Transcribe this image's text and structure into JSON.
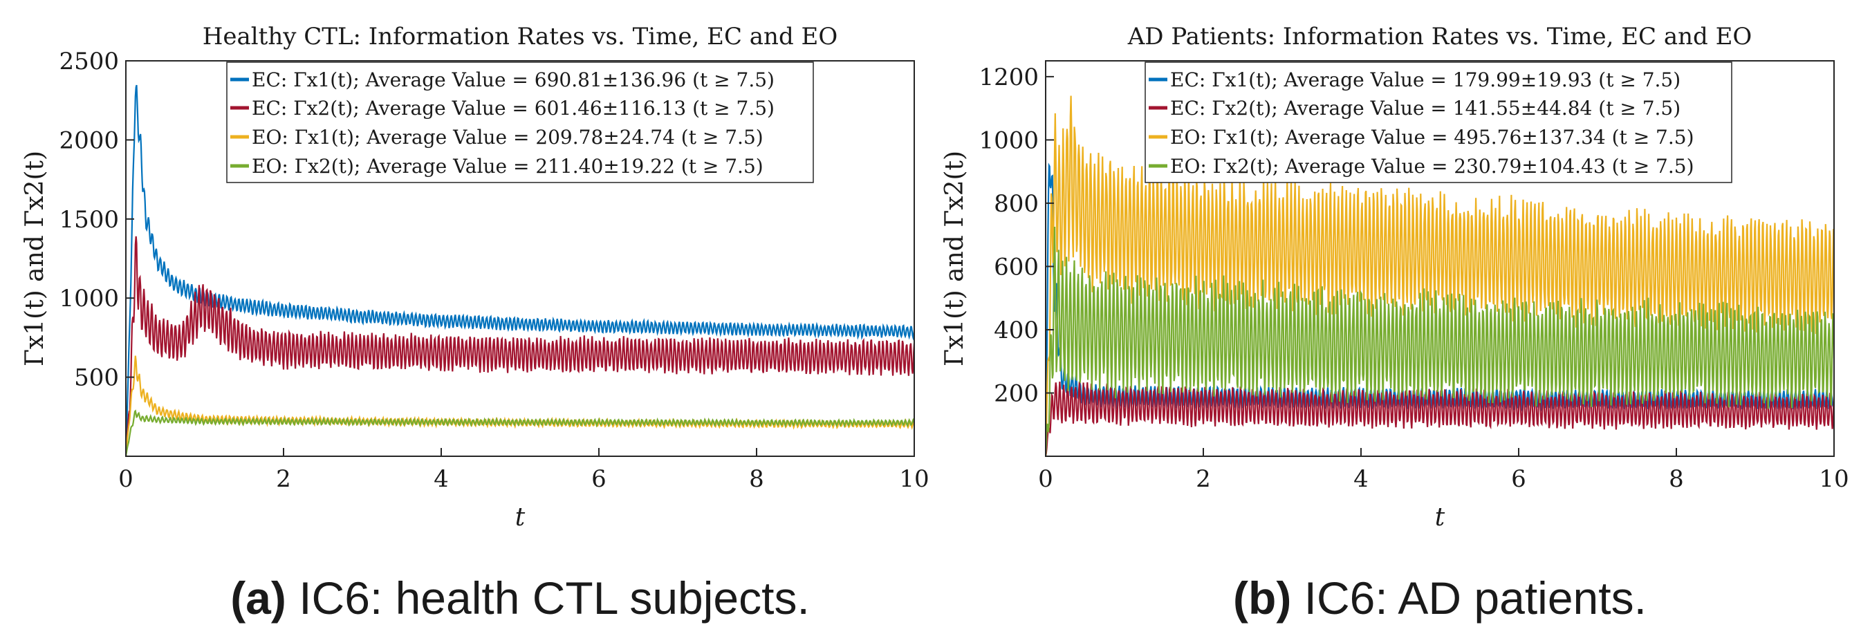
{
  "chart_data": [
    {
      "type": "line",
      "title": "Healthy CTL: Information Rates vs. Time, EC and EO",
      "xlabel": "t",
      "ylabel": "Γx1(t) and Γx2(t)",
      "xlim": [
        0,
        10
      ],
      "ylim": [
        0,
        2500
      ],
      "xticks": [
        0,
        2,
        4,
        6,
        8,
        10
      ],
      "yticks": [
        500,
        1000,
        1500,
        2000,
        2500
      ],
      "grid": false,
      "legend_position": "top-center",
      "caption": {
        "label": "(a)",
        "text": " IC6: health CTL subjects."
      },
      "series": [
        {
          "name": "EC: Γx1(t); Average Value = 690.81±136.96 (t ≥ 7.5)",
          "color": "#0072BD",
          "x": [
            0,
            0.05,
            0.12,
            0.17,
            0.25,
            0.4,
            0.6,
            1,
            1.5,
            2,
            3,
            4,
            5,
            6,
            7,
            8,
            9,
            10
          ],
          "y": [
            0,
            900,
            2450,
            2150,
            1600,
            1300,
            1150,
            1050,
            1000,
            970,
            930,
            900,
            880,
            865,
            855,
            845,
            838,
            830
          ]
        },
        {
          "name": "EC: Γx2(t); Average Value = 601.46±116.13 (t ≥ 7.5)",
          "color": "#A2142F",
          "x": [
            0,
            0.05,
            0.12,
            0.2,
            0.4,
            0.7,
            0.97,
            1.5,
            2,
            3,
            4,
            5,
            6,
            7,
            8,
            9,
            10
          ],
          "y": [
            0,
            400,
            1500,
            1100,
            900,
            850,
            1150,
            850,
            800,
            790,
            780,
            770,
            765,
            760,
            755,
            750,
            745
          ]
        },
        {
          "name": "EO: Γx1(t); Average Value = 209.78±24.74 (t ≥ 7.5)",
          "color": "#EDB120",
          "x": [
            0,
            0.05,
            0.12,
            0.2,
            0.4,
            0.7,
            1,
            2,
            3,
            4,
            5,
            6,
            7,
            8,
            9,
            10
          ],
          "y": [
            0,
            300,
            650,
            450,
            320,
            280,
            260,
            250,
            245,
            240,
            235,
            232,
            230,
            228,
            226,
            225
          ]
        },
        {
          "name": "EO: Γx2(t); Average Value = 211.40±19.22 (t ≥ 7.5)",
          "color": "#77AC30",
          "x": [
            0,
            0.05,
            0.12,
            0.2,
            0.4,
            0.7,
            1,
            2,
            3,
            4,
            5,
            6,
            7,
            8,
            9,
            10
          ],
          "y": [
            0,
            150,
            300,
            260,
            250,
            245,
            240,
            238,
            236,
            235,
            234,
            233,
            232,
            231,
            230,
            230
          ]
        }
      ]
    },
    {
      "type": "line",
      "title": "AD Patients: Information Rates vs. Time, EC and EO",
      "xlabel": "t",
      "ylabel": "Γx1(t) and Γx2(t)",
      "xlim": [
        0,
        10
      ],
      "ylim": [
        0,
        1250
      ],
      "xticks": [
        0,
        2,
        4,
        6,
        8,
        10
      ],
      "yticks": [
        200,
        400,
        600,
        800,
        1000,
        1200
      ],
      "grid": false,
      "legend_position": "top-center",
      "caption": {
        "label": "(b)",
        "text": " IC6: AD patients."
      },
      "series": [
        {
          "name": "EC: Γx1(t); Average Value = 179.99±19.93 (t ≥ 7.5)",
          "color": "#0072BD",
          "x": [
            0,
            0.03,
            0.06,
            0.1,
            0.2,
            0.5,
            1,
            2,
            3,
            4,
            5,
            6,
            7,
            8,
            9,
            10
          ],
          "y": [
            0,
            800,
            1240,
            700,
            300,
            230,
            225,
            222,
            220,
            219,
            218,
            217,
            216,
            215,
            215,
            215
          ]
        },
        {
          "name": "EC: Γx2(t); Average Value = 141.55±44.84 (t ≥ 7.5)",
          "color": "#A2142F",
          "x": [
            0,
            0.05,
            0.1,
            0.2,
            0.5,
            1,
            2,
            3,
            4,
            5,
            6,
            7,
            8,
            9,
            10
          ],
          "y": [
            0,
            150,
            250,
            240,
            235,
            230,
            225,
            220,
            218,
            215,
            213,
            210,
            208,
            206,
            205
          ]
        },
        {
          "name": "EO: Γx1(t); Average Value = 495.76±137.34 (t ≥ 7.5)",
          "color": "#EDB120",
          "x": [
            0,
            0.05,
            0.1,
            0.2,
            0.3,
            0.5,
            1,
            2,
            3,
            4,
            5,
            6,
            7,
            8,
            9,
            10
          ],
          "y": [
            0,
            600,
            1150,
            1000,
            1200,
            1000,
            950,
            900,
            880,
            870,
            850,
            830,
            800,
            780,
            770,
            760
          ]
        },
        {
          "name": "EO: Γx2(t); Average Value = 230.79±104.43 (t ≥ 7.5)",
          "color": "#77AC30",
          "x": [
            0,
            0.05,
            0.1,
            0.2,
            0.5,
            1,
            2,
            3,
            4,
            5,
            6,
            7,
            8,
            9,
            10
          ],
          "y": [
            0,
            300,
            750,
            650,
            620,
            600,
            580,
            560,
            545,
            530,
            520,
            510,
            500,
            495,
            490
          ]
        }
      ]
    }
  ]
}
